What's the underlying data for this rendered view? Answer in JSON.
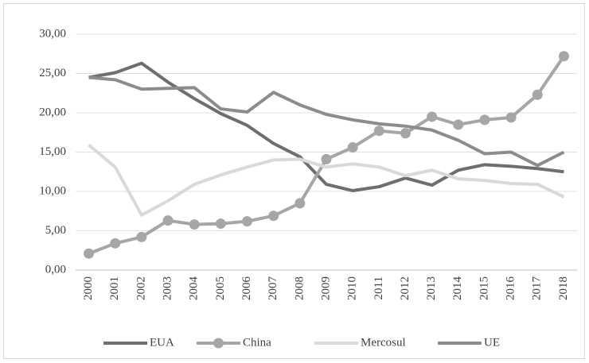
{
  "chart_data": {
    "type": "line",
    "categories": [
      "2000",
      "2001",
      "2002",
      "2003",
      "2004",
      "2005",
      "2006",
      "2007",
      "2008",
      "2009",
      "2010",
      "2011",
      "2012",
      "2013",
      "2014",
      "2015",
      "2016",
      "2017",
      "2018"
    ],
    "series": [
      {
        "name": "EUA",
        "color": "#6e6e6e",
        "marker": false,
        "values": [
          24.5,
          25.1,
          26.3,
          23.9,
          21.8,
          19.9,
          18.4,
          16.1,
          14.4,
          10.9,
          10.1,
          10.6,
          11.7,
          10.8,
          12.7,
          13.4,
          13.2,
          12.9,
          12.5
        ]
      },
      {
        "name": "China",
        "color": "#a6a6a6",
        "marker": true,
        "values": [
          2.1,
          3.4,
          4.2,
          6.3,
          5.8,
          5.9,
          6.2,
          6.9,
          8.5,
          14.1,
          15.6,
          17.7,
          17.4,
          19.5,
          18.5,
          19.1,
          19.4,
          22.3,
          27.2
        ]
      },
      {
        "name": "Mercosul",
        "color": "#d9d9d9",
        "marker": false,
        "values": [
          15.9,
          13.1,
          7.0,
          8.8,
          10.9,
          12.1,
          13.1,
          14.0,
          14.1,
          13.1,
          13.5,
          13.1,
          12.0,
          12.7,
          11.6,
          11.4,
          11.0,
          10.9,
          9.3
        ]
      },
      {
        "name": "UE",
        "color": "#8c8c8c",
        "marker": false,
        "values": [
          24.5,
          24.2,
          23.0,
          23.1,
          23.2,
          20.5,
          20.1,
          22.6,
          21.0,
          19.8,
          19.1,
          18.6,
          18.3,
          17.8,
          16.5,
          14.8,
          15.0,
          13.3,
          15.0
        ]
      }
    ],
    "ylim": [
      0,
      30
    ],
    "yticks": [
      {
        "value": 0,
        "label": "0,00"
      },
      {
        "value": 5,
        "label": "5,00"
      },
      {
        "value": 10,
        "label": "10,00"
      },
      {
        "value": 15,
        "label": "15,00"
      },
      {
        "value": 20,
        "label": "20,00"
      },
      {
        "value": 25,
        "label": "25,00"
      },
      {
        "value": 30,
        "label": "30,00"
      }
    ],
    "grid": true,
    "legend": "bottom"
  }
}
